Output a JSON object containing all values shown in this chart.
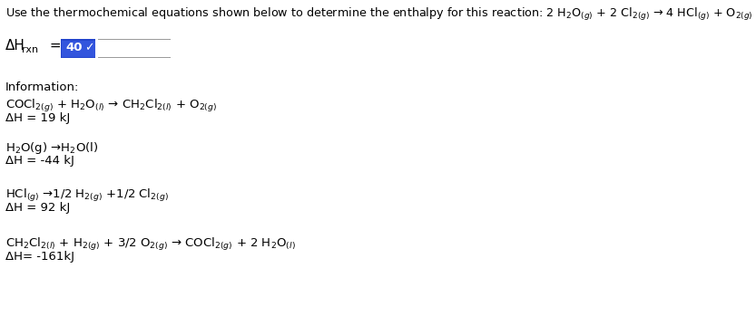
{
  "bg_color": "#ffffff",
  "text_color": "#000000",
  "fig_width": 8.33,
  "fig_height": 3.49,
  "dpi": 100,
  "title": "Use the thermochemical equations shown below to determine the enthalpy for this reaction: 2 H$_2$O$_{(g)}$ + 2 Cl$_{2(g)}$ → 4 HCl$_{(g)}$ + O$_{2(g)}$",
  "dh_label": "ΔH",
  "dh_sub": "rxn",
  "dh_eq": " = ",
  "answer_val": "40",
  "info": "Information:",
  "eq1a": "COCl$_{2(g)}$ + H$_2$O$_{(l)}$ → CH$_2$Cl$_{2(l)}$ + O$_{2(g)}$",
  "eq1b": "ΔH = 19 kJ",
  "eq2a": "H$_2$O(g) →H$_2$O(l)",
  "eq2b": "ΔH = -44 kJ",
  "eq3a": "HCl$_{(g)}$ →1/2 H$_{2(g)}$ +1/2 Cl$_{2(g)}$",
  "eq3b": "ΔH = 92 kJ",
  "eq4a": "CH$_2$Cl$_{2(l)}$ + H$_{2(g)}$ + 3/2 O$_{2(g)}$ → COCl$_{2(g)}$ + 2 H$_2$O$_{(l)}$",
  "eq4b": "ΔH= -161kJ",
  "font_size_title": 9.2,
  "font_size_body": 9.5,
  "font_size_dh": 11.0,
  "font_size_sub": 8.0
}
